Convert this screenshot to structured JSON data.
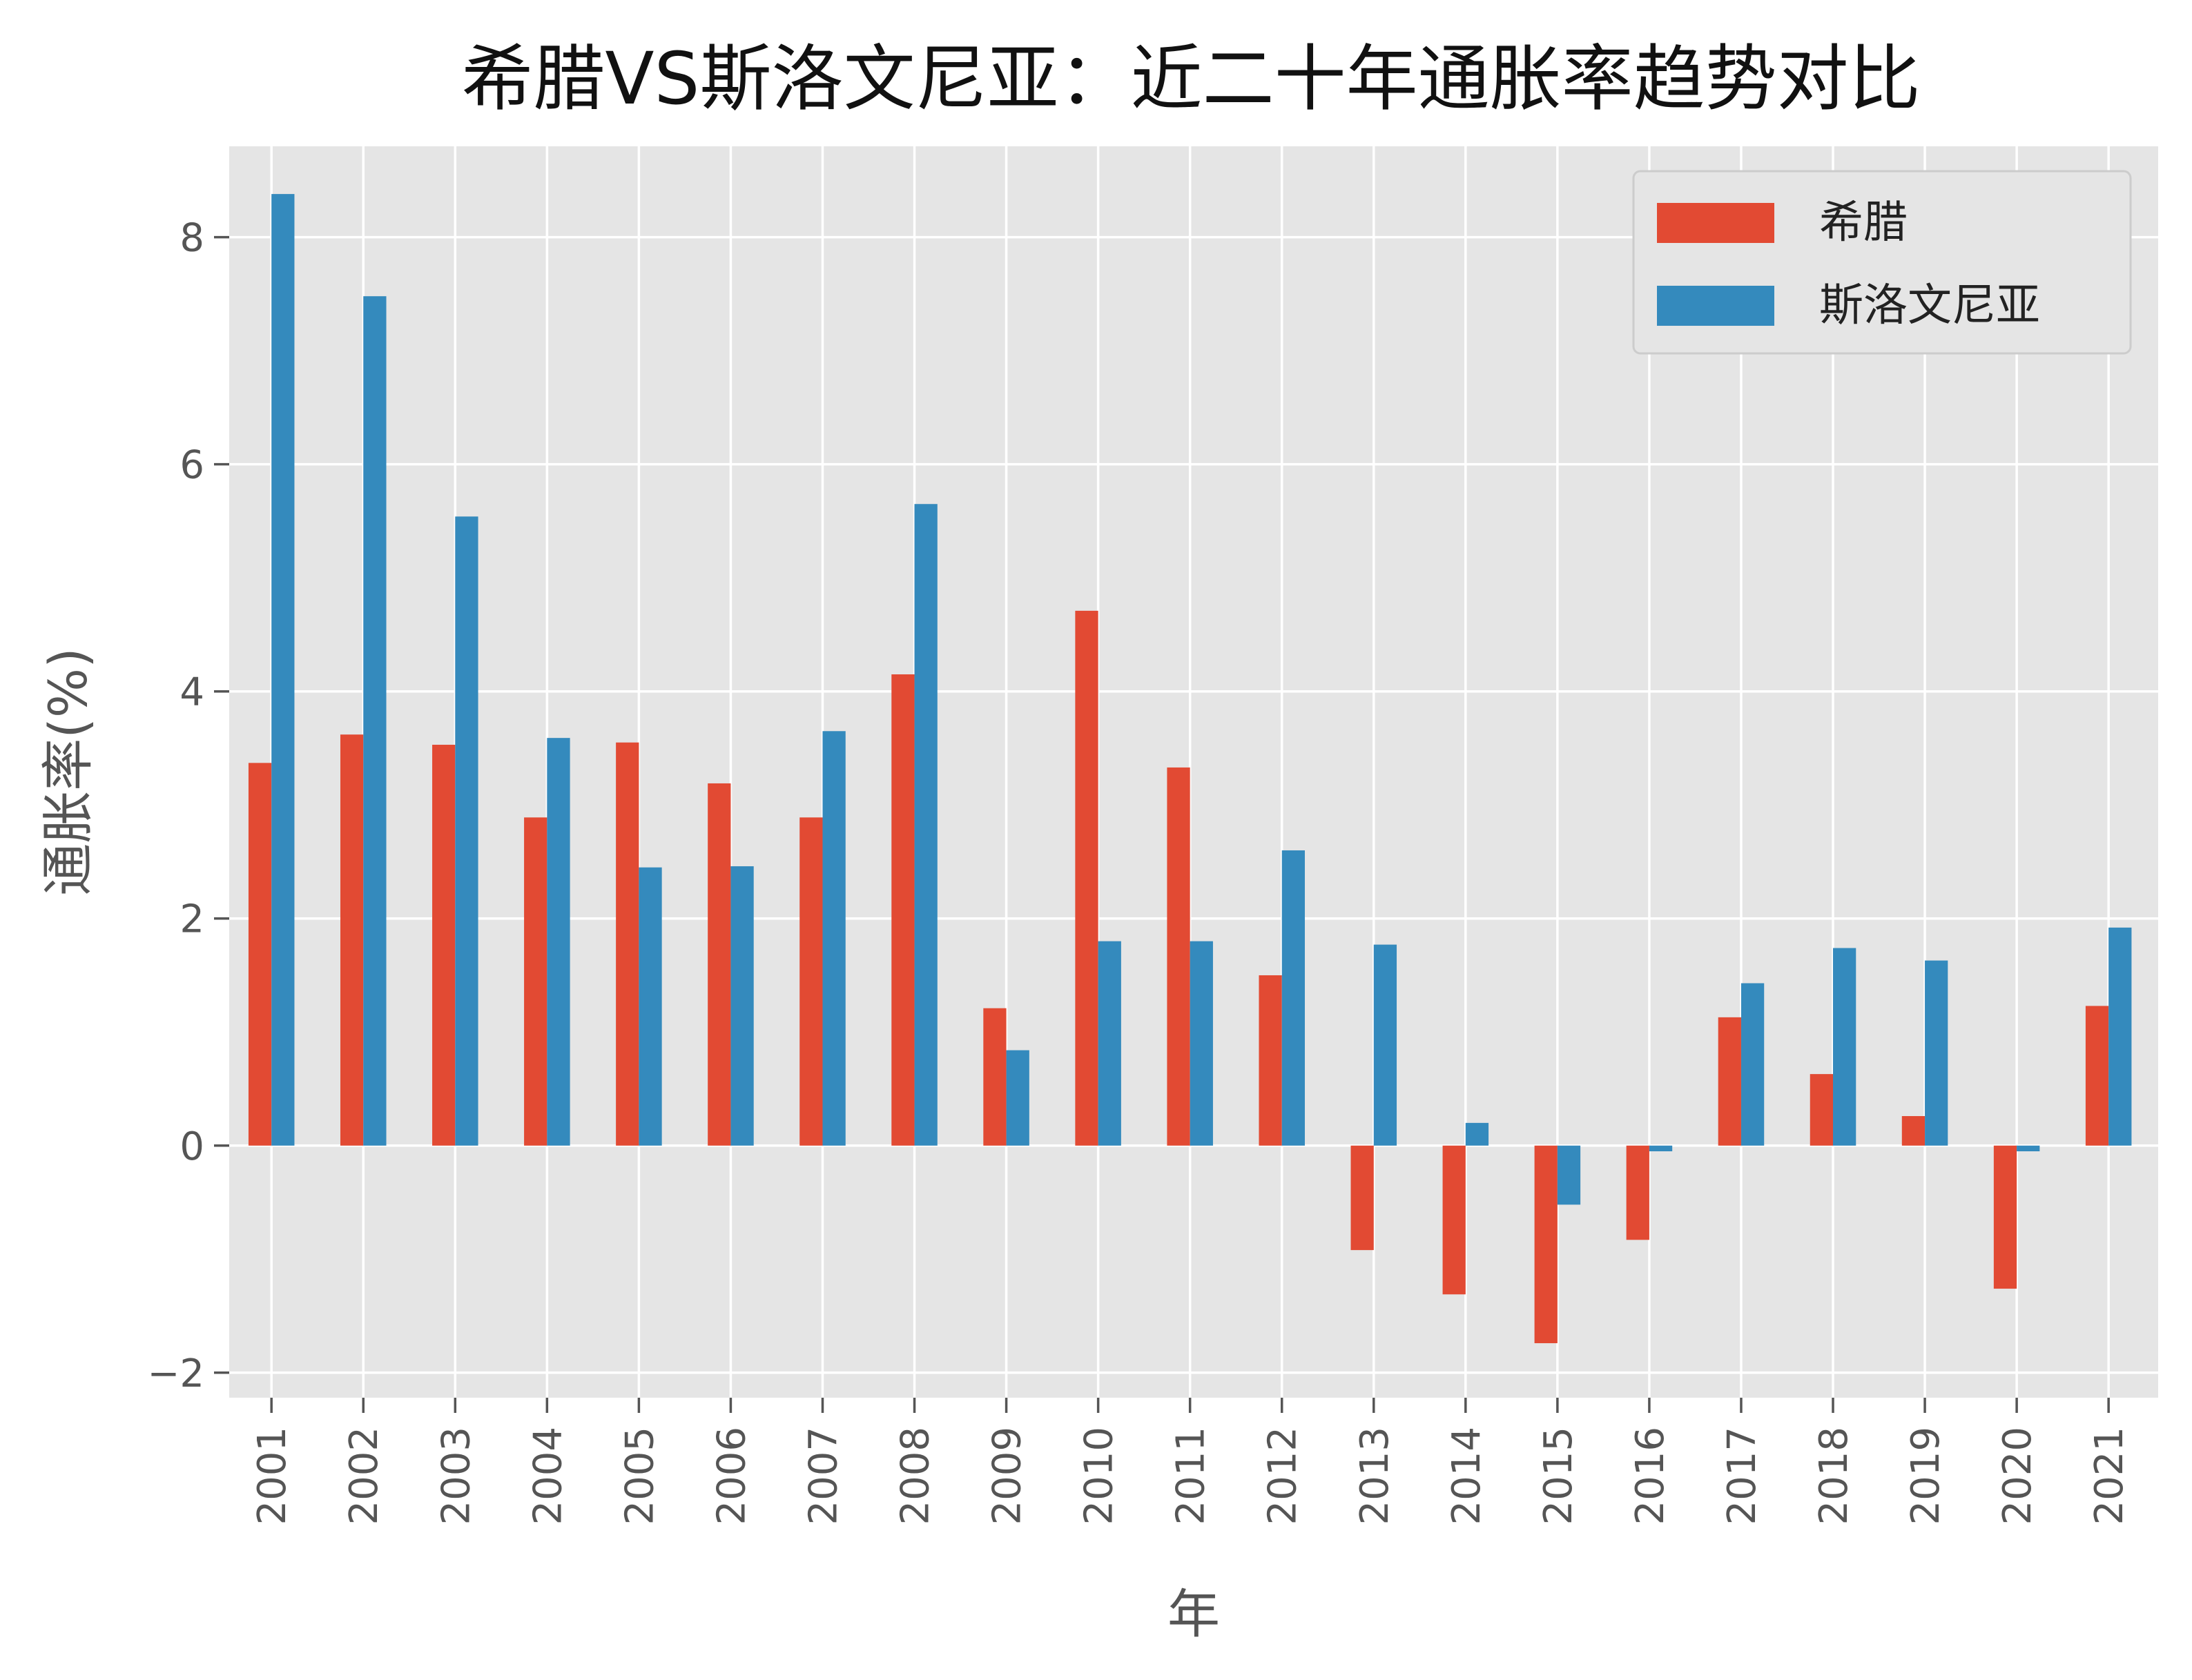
{
  "chart_data": {
    "type": "bar",
    "title": "希腊VS斯洛文尼亚：近二十年通胀率趋势对比",
    "xlabel": "年",
    "ylabel": "通胀率(%)",
    "categories": [
      "2001",
      "2002",
      "2003",
      "2004",
      "2005",
      "2006",
      "2007",
      "2008",
      "2009",
      "2010",
      "2011",
      "2012",
      "2013",
      "2014",
      "2015",
      "2016",
      "2017",
      "2018",
      "2019",
      "2020",
      "2021"
    ],
    "series": [
      {
        "name": "希腊",
        "color": "#E24A33",
        "values": [
          3.37,
          3.62,
          3.53,
          2.89,
          3.55,
          3.19,
          2.89,
          4.15,
          1.21,
          4.71,
          3.33,
          1.5,
          -0.92,
          -1.31,
          -1.74,
          -0.83,
          1.13,
          0.63,
          0.26,
          -1.26,
          1.23
        ]
      },
      {
        "name": "斯洛文尼亚",
        "color": "#348ABD",
        "values": [
          8.38,
          7.48,
          5.54,
          3.59,
          2.45,
          2.46,
          3.65,
          5.65,
          0.84,
          1.8,
          1.8,
          2.6,
          1.77,
          0.2,
          -0.52,
          -0.05,
          1.43,
          1.74,
          1.63,
          -0.05,
          1.92
        ]
      }
    ],
    "ylim": [
      -2.22,
      8.8
    ],
    "yticks": [
      -2,
      0,
      2,
      4,
      6,
      8
    ],
    "ytick_labels": [
      "−2",
      "0",
      "2",
      "4",
      "6",
      "8"
    ],
    "grid": true,
    "legend_position": "top-right",
    "background": "#E5E5E5",
    "grid_color": "#FFFFFF"
  }
}
